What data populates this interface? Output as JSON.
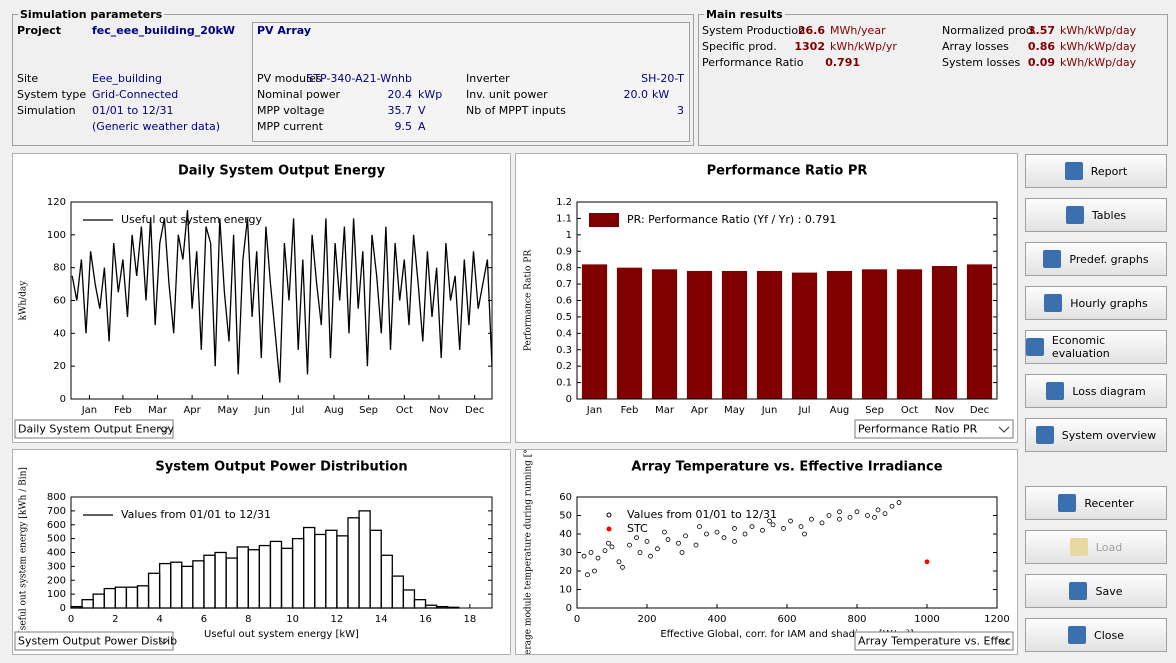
{
  "simulation_parameters": {
    "title": "Simulation parameters",
    "project_label": "Project",
    "project": "fec_eee_building_20kW",
    "site_label": "Site",
    "site": "Eee_building",
    "system_type_label": "System type",
    "system_type": "Grid-Connected",
    "simulation_label": "Simulation",
    "simulation": "01/01 to 12/31",
    "weather": "(Generic weather data)",
    "pv_array": {
      "title": "PV Array",
      "rows": [
        {
          "label": "PV modules",
          "value": "STP-340-A21-Wnhb"
        },
        {
          "label": "Nominal power",
          "value": "20.4",
          "unit": "kWp"
        },
        {
          "label": "MPP voltage",
          "value": "35.7",
          "unit": "V"
        },
        {
          "label": "MPP current",
          "value": "9.5",
          "unit": "A"
        }
      ]
    },
    "inverter": {
      "rows": [
        {
          "label": "Inverter",
          "value": "SH-20-T"
        },
        {
          "label": "Inv. unit power",
          "value": "20.0",
          "unit": "kW"
        },
        {
          "label": "Nb of MPPT inputs",
          "value": "3"
        }
      ]
    }
  },
  "main_results": {
    "title": "Main results",
    "items": [
      {
        "label": "System Production",
        "value": "26.6",
        "unit": "MWh/year"
      },
      {
        "label": "Specific prod.",
        "value": "1302",
        "unit": "kWh/kWp/yr"
      },
      {
        "label": "Performance Ratio",
        "value": "0.791"
      },
      {
        "label": "Normalized prod.",
        "value": "3.57",
        "unit": "kWh/kWp/day"
      },
      {
        "label": "Array losses",
        "value": "0.86",
        "unit": "kWh/kWp/day"
      },
      {
        "label": "System losses",
        "value": "0.09",
        "unit": "kWh/kWp/day"
      }
    ]
  },
  "buttons": [
    "Report",
    "Tables",
    "Predef. graphs",
    "Hourly graphs",
    "Economic evaluation",
    "Loss diagram",
    "System overview",
    "Recenter",
    "Load",
    "Save",
    "Close"
  ],
  "chart_data": [
    {
      "type": "line",
      "title": "Daily System Output Energy",
      "ylabel": "kWh/day",
      "selector": "Daily System Output Energy",
      "xlim": [
        0,
        365
      ],
      "xticks": [
        {
          "value": 16,
          "label": "Jan"
        },
        {
          "value": 45,
          "label": "Feb"
        },
        {
          "value": 75,
          "label": "Mar"
        },
        {
          "value": 105,
          "label": "Apr"
        },
        {
          "value": 136,
          "label": "May"
        },
        {
          "value": 166,
          "label": "Jun"
        },
        {
          "value": 197,
          "label": "Jul"
        },
        {
          "value": 228,
          "label": "Aug"
        },
        {
          "value": 258,
          "label": "Sep"
        },
        {
          "value": 289,
          "label": "Oct"
        },
        {
          "value": 319,
          "label": "Nov"
        },
        {
          "value": 350,
          "label": "Dec"
        }
      ],
      "ylim": [
        0,
        120
      ],
      "yticks": [
        0,
        20,
        40,
        60,
        80,
        100,
        120
      ],
      "series": [
        {
          "name": "Useful out system energy",
          "color": "#000000",
          "x": [
            1,
            5,
            9,
            13,
            17,
            21,
            25,
            29,
            33,
            37,
            41,
            45,
            49,
            53,
            57,
            61,
            65,
            69,
            73,
            77,
            81,
            85,
            89,
            93,
            97,
            101,
            105,
            109,
            113,
            117,
            121,
            125,
            129,
            133,
            137,
            141,
            145,
            149,
            153,
            157,
            161,
            165,
            169,
            173,
            177,
            181,
            185,
            189,
            193,
            197,
            201,
            205,
            209,
            213,
            217,
            221,
            225,
            229,
            233,
            237,
            241,
            245,
            249,
            253,
            257,
            261,
            265,
            269,
            273,
            277,
            281,
            285,
            289,
            293,
            297,
            301,
            305,
            309,
            313,
            317,
            321,
            325,
            329,
            333,
            337,
            341,
            345,
            349,
            353,
            357,
            361,
            365
          ],
          "values": [
            75,
            60,
            85,
            40,
            90,
            70,
            55,
            80,
            35,
            95,
            65,
            85,
            50,
            100,
            75,
            105,
            60,
            110,
            45,
            95,
            110,
            70,
            40,
            100,
            85,
            115,
            55,
            90,
            30,
            105,
            95,
            20,
            110,
            65,
            35,
            100,
            15,
            85,
            110,
            50,
            90,
            25,
            105,
            70,
            40,
            10,
            95,
            60,
            110,
            30,
            85,
            15,
            100,
            70,
            45,
            110,
            25,
            95,
            60,
            105,
            40,
            110,
            55,
            90,
            20,
            100,
            75,
            40,
            105,
            30,
            95,
            60,
            85,
            45,
            100,
            70,
            35,
            90,
            50,
            80,
            25,
            95,
            60,
            75,
            30,
            85,
            45,
            90,
            55,
            70,
            85,
            20
          ]
        }
      ]
    },
    {
      "type": "bar",
      "title": "Performance Ratio PR",
      "ylabel": "Performance Ratio PR",
      "selector": "Performance Ratio PR",
      "categories": [
        "Jan",
        "Feb",
        "Mar",
        "Apr",
        "May",
        "Jun",
        "Jul",
        "Aug",
        "Sep",
        "Oct",
        "Nov",
        "Dec"
      ],
      "ylim": [
        0,
        1.2
      ],
      "yticks": [
        0,
        0.1,
        0.2,
        0.3,
        0.4,
        0.5,
        0.6,
        0.7,
        0.8,
        0.9,
        1,
        1.1,
        1.2
      ],
      "series": [
        {
          "name": "PR: Performance Ratio (Yf / Yr) :  0.791",
          "color": "#800000",
          "values": [
            0.82,
            0.8,
            0.79,
            0.78,
            0.78,
            0.78,
            0.77,
            0.78,
            0.79,
            0.79,
            0.81,
            0.82
          ]
        }
      ]
    },
    {
      "type": "histogram",
      "title": "System Output Power Distribution",
      "xlabel": "Useful out system energy [kW]",
      "ylabel": "Useful out system energy [kWh / Bin]",
      "selector": "System Output Power Distrib",
      "xlim": [
        0,
        19
      ],
      "xticks": [
        0,
        2,
        4,
        6,
        8,
        10,
        12,
        14,
        16,
        18
      ],
      "ylim": [
        0,
        800
      ],
      "yticks": [
        0,
        100,
        200,
        300,
        400,
        500,
        600,
        700,
        800
      ],
      "bins": [
        0,
        0.5,
        1,
        1.5,
        2,
        2.5,
        3,
        3.5,
        4,
        4.5,
        5,
        5.5,
        6,
        6.5,
        7,
        7.5,
        8,
        8.5,
        9,
        9.5,
        10,
        10.5,
        11,
        11.5,
        12,
        12.5,
        13,
        13.5,
        14,
        14.5,
        15,
        15.5,
        16,
        16.5,
        17,
        17.5
      ],
      "series": [
        {
          "name": "Values from 01/01 to 12/31",
          "color": "#000000",
          "values": [
            10,
            60,
            100,
            140,
            150,
            150,
            160,
            250,
            320,
            330,
            300,
            340,
            380,
            400,
            360,
            440,
            420,
            450,
            480,
            430,
            500,
            580,
            530,
            560,
            520,
            650,
            700,
            560,
            380,
            230,
            130,
            60,
            20,
            10,
            5
          ]
        }
      ]
    },
    {
      "type": "scatter",
      "title": "Array Temperature vs. Effective Irradiance",
      "xlabel": "Effective Global, corr. for IAM and shadings [W/m²]",
      "ylabel": "Average module temperature during running [°C]",
      "selector": "Array Temperature vs. Effec",
      "xlim": [
        0,
        1200
      ],
      "xticks": [
        0,
        200,
        400,
        600,
        800,
        1000,
        1200
      ],
      "ylim": [
        0,
        60
      ],
      "yticks": [
        0,
        10,
        20,
        30,
        40,
        50,
        60
      ],
      "series": [
        {
          "name": "Values from 01/01 to 12/31",
          "color": "#000000",
          "x": [
            20,
            40,
            60,
            80,
            100,
            120,
            150,
            180,
            200,
            230,
            260,
            290,
            310,
            340,
            370,
            400,
            420,
            450,
            480,
            500,
            530,
            560,
            590,
            610,
            640,
            670,
            700,
            720,
            750,
            780,
            800,
            830,
            860,
            880,
            900,
            920,
            50,
            90,
            130,
            170,
            210,
            250,
            300,
            350,
            450,
            550,
            650,
            750,
            850,
            30
          ],
          "values": [
            28,
            30,
            27,
            31,
            33,
            25,
            34,
            30,
            36,
            32,
            37,
            35,
            39,
            34,
            40,
            41,
            38,
            43,
            40,
            44,
            42,
            45,
            43,
            47,
            44,
            48,
            46,
            50,
            48,
            49,
            52,
            50,
            53,
            51,
            55,
            57,
            20,
            35,
            22,
            38,
            28,
            41,
            30,
            44,
            36,
            47,
            40,
            52,
            49,
            18
          ]
        },
        {
          "name": "STC",
          "color": "#ff0000",
          "x": [
            1000
          ],
          "values": [
            25
          ]
        }
      ]
    }
  ]
}
